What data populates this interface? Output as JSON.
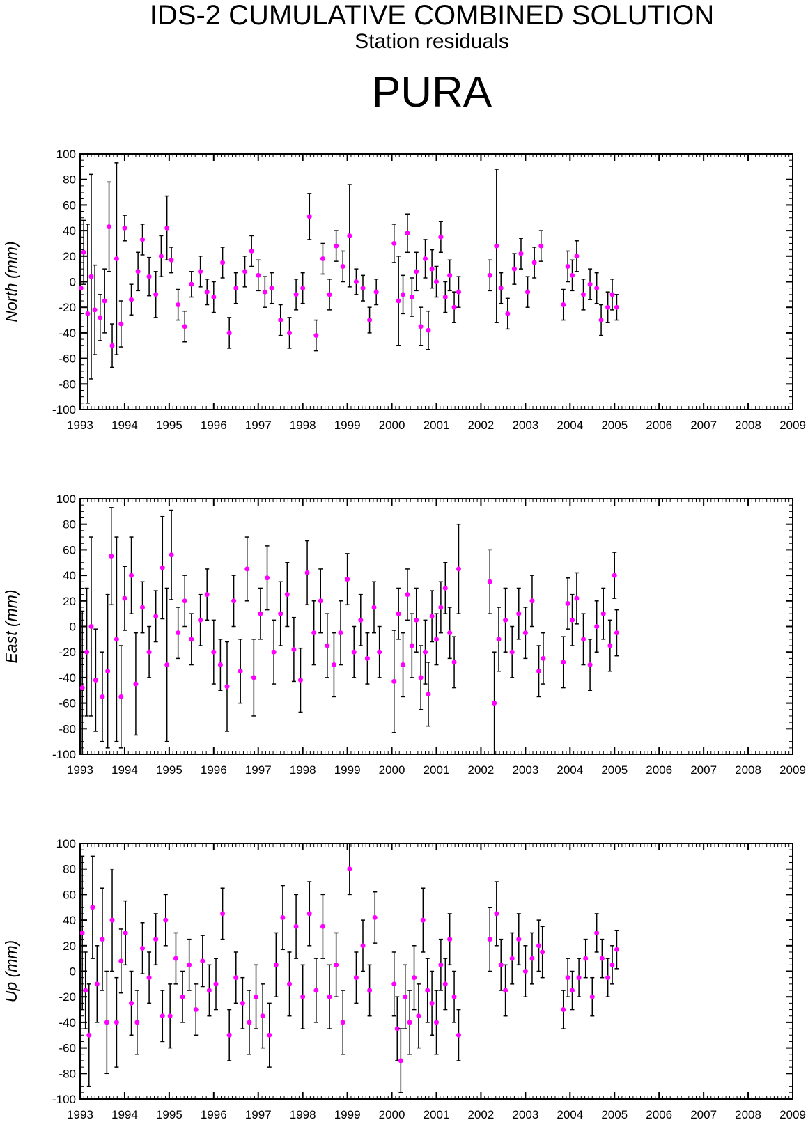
{
  "header": {
    "title": "IDS-2 CUMULATIVE COMBINED SOLUTION",
    "subtitle": "Station residuals",
    "station": "PURA"
  },
  "colors": {
    "point": "#ff00ff",
    "errorbar": "#000000",
    "axis": "#000000"
  },
  "chart_data": [
    {
      "type": "scatter",
      "ylabel": "North (mm)",
      "xlim": [
        1993,
        2009
      ],
      "ylim": [
        -100,
        100
      ],
      "x_ticks": [
        1993,
        1994,
        1995,
        1996,
        1997,
        1998,
        1999,
        2000,
        2001,
        2002,
        2003,
        2004,
        2005,
        2006,
        2007,
        2008,
        2009
      ],
      "y_ticks": [
        100,
        80,
        60,
        40,
        20,
        0,
        -20,
        -40,
        -60,
        -80,
        -100
      ],
      "grid": false,
      "error_bars": true,
      "points": [
        [
          1993.02,
          -5,
          70
        ],
        [
          1993.08,
          23,
          25
        ],
        [
          1993.17,
          -25,
          70
        ],
        [
          1993.25,
          4,
          80
        ],
        [
          1993.33,
          -22,
          35
        ],
        [
          1993.45,
          -28,
          18
        ],
        [
          1993.55,
          -15,
          25
        ],
        [
          1993.65,
          43,
          35
        ],
        [
          1993.72,
          -50,
          17
        ],
        [
          1993.82,
          18,
          75
        ],
        [
          1993.92,
          -33,
          18
        ],
        [
          1994.0,
          42,
          10
        ],
        [
          1994.15,
          -14,
          12
        ],
        [
          1994.3,
          8,
          15
        ],
        [
          1994.4,
          33,
          12
        ],
        [
          1994.55,
          4,
          15
        ],
        [
          1994.7,
          -10,
          18
        ],
        [
          1994.82,
          20,
          16
        ],
        [
          1994.95,
          42,
          25
        ],
        [
          1995.05,
          17,
          10
        ],
        [
          1995.2,
          -18,
          12
        ],
        [
          1995.35,
          -35,
          12
        ],
        [
          1995.5,
          -2,
          10
        ],
        [
          1995.7,
          8,
          12
        ],
        [
          1995.85,
          -8,
          10
        ],
        [
          1996.0,
          -12,
          12
        ],
        [
          1996.2,
          15,
          12
        ],
        [
          1996.35,
          -40,
          12
        ],
        [
          1996.5,
          -5,
          12
        ],
        [
          1996.7,
          8,
          12
        ],
        [
          1996.85,
          24,
          12
        ],
        [
          1997.0,
          5,
          12
        ],
        [
          1997.15,
          -8,
          12
        ],
        [
          1997.3,
          -5,
          12
        ],
        [
          1997.5,
          -30,
          12
        ],
        [
          1997.7,
          -40,
          12
        ],
        [
          1997.85,
          -10,
          12
        ],
        [
          1998.0,
          -5,
          12
        ],
        [
          1998.15,
          51,
          18
        ],
        [
          1998.3,
          -42,
          12
        ],
        [
          1998.45,
          18,
          12
        ],
        [
          1998.6,
          -10,
          12
        ],
        [
          1998.75,
          28,
          12
        ],
        [
          1998.9,
          12,
          12
        ],
        [
          1999.05,
          36,
          40
        ],
        [
          1999.2,
          0,
          10
        ],
        [
          1999.35,
          -5,
          10
        ],
        [
          1999.5,
          -30,
          10
        ],
        [
          1999.65,
          -8,
          10
        ],
        [
          2000.05,
          30,
          15
        ],
        [
          2000.15,
          -15,
          35
        ],
        [
          2000.25,
          -10,
          15
        ],
        [
          2000.35,
          38,
          15
        ],
        [
          2000.45,
          -12,
          15
        ],
        [
          2000.55,
          8,
          15
        ],
        [
          2000.65,
          -35,
          15
        ],
        [
          2000.75,
          18,
          15
        ],
        [
          2000.82,
          -38,
          15
        ],
        [
          2000.9,
          10,
          15
        ],
        [
          2001.0,
          0,
          12
        ],
        [
          2001.1,
          35,
          12
        ],
        [
          2001.2,
          -12,
          12
        ],
        [
          2001.3,
          5,
          12
        ],
        [
          2001.4,
          -20,
          12
        ],
        [
          2001.5,
          -8,
          12
        ],
        [
          2002.2,
          5,
          12
        ],
        [
          2002.35,
          28,
          60
        ],
        [
          2002.45,
          -5,
          12
        ],
        [
          2002.6,
          -25,
          12
        ],
        [
          2002.75,
          10,
          12
        ],
        [
          2002.9,
          22,
          12
        ],
        [
          2003.05,
          -8,
          12
        ],
        [
          2003.2,
          15,
          12
        ],
        [
          2003.35,
          28,
          12
        ],
        [
          2003.85,
          -18,
          12
        ],
        [
          2003.95,
          12,
          12
        ],
        [
          2004.05,
          5,
          12
        ],
        [
          2004.15,
          20,
          12
        ],
        [
          2004.3,
          -10,
          12
        ],
        [
          2004.45,
          -2,
          12
        ],
        [
          2004.6,
          -5,
          12
        ],
        [
          2004.7,
          -30,
          12
        ],
        [
          2004.85,
          -20,
          12
        ],
        [
          2004.95,
          -10,
          12
        ],
        [
          2005.05,
          -20,
          10
        ]
      ]
    },
    {
      "type": "scatter",
      "ylabel": "East (mm)",
      "xlim": [
        1993,
        2009
      ],
      "ylim": [
        -100,
        100
      ],
      "x_ticks": [
        1993,
        1994,
        1995,
        1996,
        1997,
        1998,
        1999,
        2000,
        2001,
        2002,
        2003,
        2004,
        2005,
        2006,
        2007,
        2008,
        2009
      ],
      "y_ticks": [
        100,
        80,
        60,
        40,
        20,
        0,
        -20,
        -40,
        -60,
        -80,
        -100
      ],
      "grid": false,
      "error_bars": true,
      "points": [
        [
          1993.05,
          -48,
          60
        ],
        [
          1993.15,
          -20,
          50
        ],
        [
          1993.25,
          0,
          70
        ],
        [
          1993.35,
          -42,
          40
        ],
        [
          1993.5,
          -55,
          35
        ],
        [
          1993.62,
          -35,
          60
        ],
        [
          1993.7,
          55,
          38
        ],
        [
          1993.82,
          -10,
          80
        ],
        [
          1993.92,
          -55,
          40
        ],
        [
          1994.0,
          22,
          25
        ],
        [
          1994.15,
          40,
          30
        ],
        [
          1994.25,
          -45,
          40
        ],
        [
          1994.4,
          15,
          20
        ],
        [
          1994.55,
          -20,
          20
        ],
        [
          1994.7,
          8,
          20
        ],
        [
          1994.85,
          46,
          40
        ],
        [
          1994.95,
          -30,
          60
        ],
        [
          1995.05,
          56,
          35
        ],
        [
          1995.2,
          -5,
          20
        ],
        [
          1995.35,
          20,
          20
        ],
        [
          1995.5,
          -10,
          20
        ],
        [
          1995.7,
          5,
          20
        ],
        [
          1995.85,
          25,
          20
        ],
        [
          1996.0,
          -20,
          25
        ],
        [
          1996.15,
          -30,
          20
        ],
        [
          1996.3,
          -47,
          35
        ],
        [
          1996.45,
          20,
          20
        ],
        [
          1996.6,
          -35,
          25
        ],
        [
          1996.75,
          45,
          25
        ],
        [
          1996.9,
          -40,
          30
        ],
        [
          1997.05,
          10,
          20
        ],
        [
          1997.2,
          38,
          25
        ],
        [
          1997.35,
          -20,
          25
        ],
        [
          1997.5,
          10,
          25
        ],
        [
          1997.65,
          25,
          25
        ],
        [
          1997.8,
          -18,
          25
        ],
        [
          1997.95,
          -42,
          25
        ],
        [
          1998.1,
          42,
          25
        ],
        [
          1998.25,
          -5,
          25
        ],
        [
          1998.4,
          20,
          25
        ],
        [
          1998.55,
          -15,
          25
        ],
        [
          1998.7,
          -30,
          25
        ],
        [
          1998.85,
          -5,
          25
        ],
        [
          1999.0,
          37,
          20
        ],
        [
          1999.15,
          -20,
          20
        ],
        [
          1999.3,
          5,
          20
        ],
        [
          1999.45,
          -25,
          20
        ],
        [
          1999.6,
          15,
          20
        ],
        [
          1999.72,
          -20,
          20
        ],
        [
          2000.05,
          -43,
          40
        ],
        [
          2000.15,
          10,
          20
        ],
        [
          2000.25,
          -30,
          25
        ],
        [
          2000.35,
          25,
          20
        ],
        [
          2000.45,
          -15,
          25
        ],
        [
          2000.55,
          5,
          25
        ],
        [
          2000.65,
          -40,
          25
        ],
        [
          2000.75,
          -20,
          25
        ],
        [
          2000.82,
          -53,
          25
        ],
        [
          2000.9,
          8,
          20
        ],
        [
          2001.0,
          -10,
          20
        ],
        [
          2001.1,
          15,
          20
        ],
        [
          2001.2,
          30,
          20
        ],
        [
          2001.3,
          -5,
          20
        ],
        [
          2001.4,
          -28,
          20
        ],
        [
          2001.5,
          45,
          35
        ],
        [
          2002.2,
          35,
          25
        ],
        [
          2002.3,
          -60,
          40
        ],
        [
          2002.4,
          -10,
          25
        ],
        [
          2002.55,
          5,
          25
        ],
        [
          2002.7,
          -20,
          20
        ],
        [
          2002.85,
          10,
          20
        ],
        [
          2003.0,
          -5,
          20
        ],
        [
          2003.15,
          20,
          20
        ],
        [
          2003.3,
          -35,
          20
        ],
        [
          2003.4,
          -25,
          20
        ],
        [
          2003.85,
          -28,
          20
        ],
        [
          2003.95,
          18,
          20
        ],
        [
          2004.05,
          5,
          20
        ],
        [
          2004.15,
          22,
          20
        ],
        [
          2004.3,
          -10,
          20
        ],
        [
          2004.45,
          -30,
          20
        ],
        [
          2004.6,
          0,
          20
        ],
        [
          2004.75,
          10,
          20
        ],
        [
          2004.9,
          -15,
          20
        ],
        [
          2005.0,
          40,
          18
        ],
        [
          2005.05,
          -5,
          18
        ]
      ]
    },
    {
      "type": "scatter",
      "ylabel": "Up (mm)",
      "xlim": [
        1993,
        2009
      ],
      "ylim": [
        -100,
        100
      ],
      "x_ticks": [
        1993,
        1994,
        1995,
        1996,
        1997,
        1998,
        1999,
        2000,
        2001,
        2002,
        2003,
        2004,
        2005,
        2006,
        2007,
        2008,
        2009
      ],
      "y_ticks": [
        100,
        80,
        60,
        40,
        20,
        0,
        -20,
        -40,
        -60,
        -80,
        -100
      ],
      "grid": false,
      "error_bars": true,
      "points": [
        [
          1993.05,
          30,
          60
        ],
        [
          1993.12,
          -15,
          30
        ],
        [
          1993.2,
          -50,
          40
        ],
        [
          1993.28,
          50,
          40
        ],
        [
          1993.38,
          -10,
          30
        ],
        [
          1993.5,
          25,
          40
        ],
        [
          1993.6,
          -40,
          40
        ],
        [
          1993.72,
          40,
          40
        ],
        [
          1993.82,
          -40,
          35
        ],
        [
          1993.92,
          8,
          25
        ],
        [
          1994.02,
          30,
          25
        ],
        [
          1994.15,
          -25,
          25
        ],
        [
          1994.28,
          -40,
          25
        ],
        [
          1994.4,
          18,
          20
        ],
        [
          1994.55,
          -5,
          20
        ],
        [
          1994.7,
          25,
          20
        ],
        [
          1994.85,
          -35,
          20
        ],
        [
          1994.92,
          40,
          20
        ],
        [
          1995.02,
          -35,
          25
        ],
        [
          1995.15,
          10,
          20
        ],
        [
          1995.3,
          -20,
          20
        ],
        [
          1995.45,
          5,
          20
        ],
        [
          1995.6,
          -30,
          20
        ],
        [
          1995.75,
          8,
          20
        ],
        [
          1995.9,
          -15,
          20
        ],
        [
          1996.05,
          -10,
          20
        ],
        [
          1996.2,
          45,
          20
        ],
        [
          1996.35,
          -50,
          20
        ],
        [
          1996.5,
          -5,
          20
        ],
        [
          1996.65,
          -25,
          20
        ],
        [
          1996.8,
          -40,
          25
        ],
        [
          1996.95,
          -20,
          25
        ],
        [
          1997.1,
          -35,
          25
        ],
        [
          1997.25,
          -50,
          25
        ],
        [
          1997.4,
          5,
          25
        ],
        [
          1997.55,
          42,
          25
        ],
        [
          1997.7,
          -10,
          25
        ],
        [
          1997.85,
          35,
          25
        ],
        [
          1998.0,
          -20,
          25
        ],
        [
          1998.15,
          45,
          25
        ],
        [
          1998.3,
          -15,
          25
        ],
        [
          1998.45,
          35,
          25
        ],
        [
          1998.6,
          -20,
          25
        ],
        [
          1998.75,
          5,
          25
        ],
        [
          1998.9,
          -40,
          25
        ],
        [
          1999.05,
          80,
          20
        ],
        [
          1999.2,
          -5,
          20
        ],
        [
          1999.35,
          20,
          20
        ],
        [
          1999.5,
          -15,
          20
        ],
        [
          1999.62,
          42,
          20
        ],
        [
          2000.05,
          -10,
          25
        ],
        [
          2000.12,
          -45,
          25
        ],
        [
          2000.2,
          -70,
          25
        ],
        [
          2000.3,
          -20,
          25
        ],
        [
          2000.4,
          -40,
          25
        ],
        [
          2000.5,
          -5,
          25
        ],
        [
          2000.6,
          -35,
          25
        ],
        [
          2000.7,
          40,
          25
        ],
        [
          2000.8,
          -15,
          25
        ],
        [
          2000.9,
          -25,
          25
        ],
        [
          2001.0,
          -40,
          25
        ],
        [
          2001.1,
          5,
          20
        ],
        [
          2001.2,
          -10,
          20
        ],
        [
          2001.3,
          25,
          20
        ],
        [
          2001.4,
          -20,
          20
        ],
        [
          2001.5,
          -50,
          20
        ],
        [
          2002.2,
          25,
          25
        ],
        [
          2002.35,
          45,
          25
        ],
        [
          2002.45,
          5,
          20
        ],
        [
          2002.55,
          -15,
          20
        ],
        [
          2002.7,
          10,
          20
        ],
        [
          2002.85,
          25,
          20
        ],
        [
          2003.0,
          0,
          20
        ],
        [
          2003.15,
          10,
          20
        ],
        [
          2003.3,
          20,
          20
        ],
        [
          2003.38,
          15,
          20
        ],
        [
          2003.85,
          -30,
          15
        ],
        [
          2003.95,
          -5,
          15
        ],
        [
          2004.05,
          -15,
          15
        ],
        [
          2004.2,
          -5,
          15
        ],
        [
          2004.35,
          10,
          15
        ],
        [
          2004.5,
          -20,
          15
        ],
        [
          2004.6,
          30,
          15
        ],
        [
          2004.72,
          10,
          15
        ],
        [
          2004.85,
          -5,
          15
        ],
        [
          2004.95,
          5,
          15
        ],
        [
          2005.05,
          17,
          15
        ]
      ]
    }
  ]
}
